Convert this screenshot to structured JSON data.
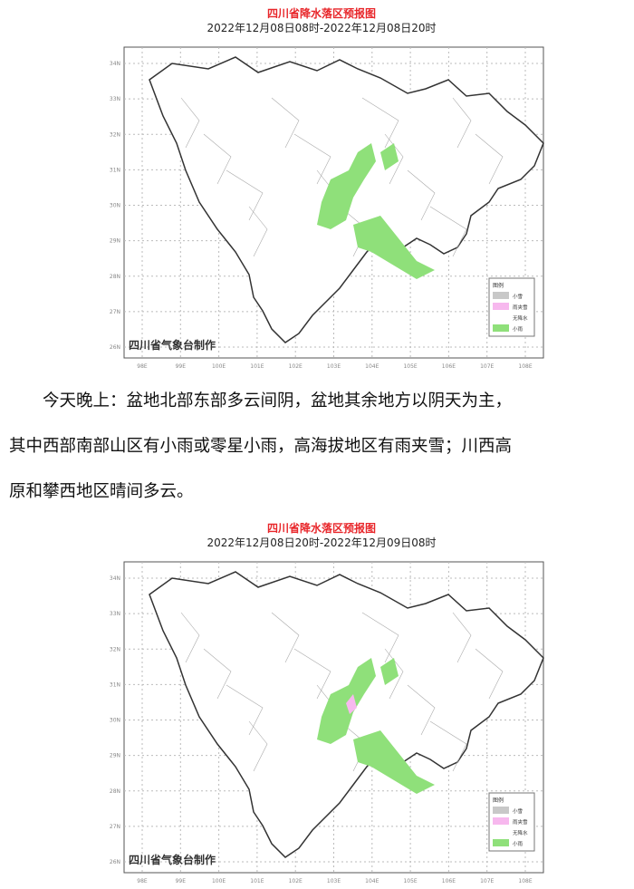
{
  "maps": [
    {
      "title": "四川省降水落区预报图",
      "subtitle": "2022年12月08日08时-2022年12月08日20时",
      "credit": "四川省气象台制作",
      "legend": {
        "title": "图例",
        "items": [
          {
            "label": "小雪",
            "color": "#c8c8c8"
          },
          {
            "label": "雨夹雪",
            "color": "#f7b8ee"
          },
          {
            "label": "无降水",
            "color": "#ffffff"
          },
          {
            "label": "小雨",
            "color": "#8fe07a"
          }
        ]
      }
    },
    {
      "title": "四川省降水落区预报图",
      "subtitle": "2022年12月08日20时-2022年12月09日08时",
      "credit": "四川省气象台制作",
      "legend": {
        "title": "图例",
        "items": [
          {
            "label": "小雪",
            "color": "#c8c8c8"
          },
          {
            "label": "雨夹雪",
            "color": "#f7b8ee"
          },
          {
            "label": "无降水",
            "color": "#ffffff"
          },
          {
            "label": "小雨",
            "color": "#8fe07a"
          }
        ]
      }
    }
  ],
  "xticks": [
    "98E",
    "99E",
    "100E",
    "101E",
    "102E",
    "103E",
    "104E",
    "105E",
    "106E",
    "107E",
    "108E"
  ],
  "yticks": [
    "34N",
    "33N",
    "32N",
    "31N",
    "30N",
    "29N",
    "28N",
    "27N",
    "26N"
  ],
  "text": {
    "line1": "今天晚上：盆地北部东部多云间阴，盆地其余地方以阴天为主，",
    "line2": "其中西部南部山区有小雨或零星小雨，高海拔地区有雨夹雪；川西高",
    "line3": "原和攀西地区晴间多云。"
  }
}
